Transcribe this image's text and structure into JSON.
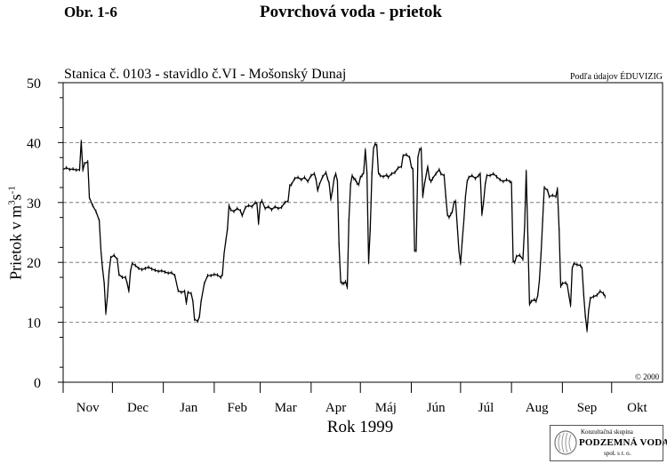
{
  "header": {
    "figure_label": "Obr. 1-6",
    "title": "Povrchová voda - prietok",
    "station": "Stanica č. 0103 - stavidlo č.VI - Mošonský Dunaj",
    "source": "Podľa údajov ÉDUVIZIG",
    "copyright": "© 2000"
  },
  "logo": {
    "line1": "Konzultačná skupina",
    "line2": "PODZEMNÁ VODA",
    "line3": "spol. s r. o."
  },
  "chart_data": {
    "type": "line",
    "title": "Povrchová voda - prietok",
    "subtitle": "Stanica č. 0103 - stavidlo č.VI - Mošonský Dunaj",
    "xlabel": "Rok 1999",
    "ylabel": "Prietok v m³s⁻¹",
    "ylabel_parts": {
      "text": "Prietok v m",
      "sup1": "3",
      "mid": "s",
      "sup2": "-1"
    },
    "ylim": [
      0,
      50
    ],
    "xlim": [
      0,
      365
    ],
    "yticks": [
      0,
      10,
      20,
      30,
      40,
      50
    ],
    "months": [
      "Nov",
      "Dec",
      "Jan",
      "Feb",
      "Mar",
      "Apr",
      "Máj",
      "Jún",
      "Júl",
      "Aug",
      "Sep",
      "Okt"
    ],
    "month_starts": [
      0,
      30,
      61,
      92,
      120,
      151,
      181,
      212,
      242,
      273,
      304,
      334
    ],
    "x_unit": "days since start of November 1998",
    "grid": "horizontal dashed",
    "series": [
      {
        "name": "Prietok",
        "color": "#000000",
        "points": [
          [
            0,
            35.5
          ],
          [
            2,
            35.8
          ],
          [
            4,
            35.5
          ],
          [
            6,
            35.6
          ],
          [
            8,
            35.4
          ],
          [
            10,
            35.5
          ],
          [
            11,
            40.2
          ],
          [
            12,
            35.4
          ],
          [
            13,
            36.5
          ],
          [
            15,
            36.8
          ],
          [
            16,
            30.8
          ],
          [
            18,
            29.5
          ],
          [
            20,
            28.5
          ],
          [
            22,
            27.0
          ],
          [
            23,
            22.0
          ],
          [
            24,
            19.0
          ],
          [
            25,
            16.5
          ],
          [
            26,
            11.5
          ],
          [
            27,
            14.5
          ],
          [
            28,
            18.5
          ],
          [
            29,
            20.8
          ],
          [
            31,
            21.2
          ],
          [
            33,
            20.5
          ],
          [
            34,
            18.0
          ],
          [
            36,
            17.5
          ],
          [
            38,
            17.5
          ],
          [
            39,
            16.5
          ],
          [
            40,
            15.2
          ],
          [
            41,
            18.5
          ],
          [
            42,
            19.8
          ],
          [
            44,
            19.5
          ],
          [
            46,
            19.0
          ],
          [
            48,
            18.8
          ],
          [
            50,
            19.0
          ],
          [
            52,
            19.2
          ],
          [
            54,
            18.9
          ],
          [
            56,
            18.7
          ],
          [
            58,
            18.5
          ],
          [
            60,
            18.6
          ],
          [
            62,
            18.4
          ],
          [
            64,
            18.2
          ],
          [
            66,
            18.3
          ],
          [
            68,
            17.8
          ],
          [
            70,
            15.3
          ],
          [
            72,
            15.0
          ],
          [
            74,
            15.2
          ],
          [
            75,
            13.2
          ],
          [
            76,
            15.0
          ],
          [
            78,
            14.8
          ],
          [
            79,
            13.5
          ],
          [
            80,
            10.5
          ],
          [
            82,
            10.2
          ],
          [
            83,
            11.0
          ],
          [
            84,
            13.5
          ],
          [
            86,
            16.5
          ],
          [
            88,
            17.8
          ],
          [
            90,
            17.8
          ],
          [
            92,
            18.0
          ],
          [
            94,
            17.9
          ],
          [
            96,
            17.5
          ],
          [
            97,
            18.0
          ],
          [
            98,
            21.5
          ],
          [
            99,
            23.5
          ],
          [
            100,
            25.5
          ],
          [
            101,
            29.5
          ],
          [
            102,
            28.8
          ],
          [
            104,
            28.5
          ],
          [
            106,
            29.0
          ],
          [
            108,
            28.6
          ],
          [
            109,
            27.8
          ],
          [
            111,
            29.2
          ],
          [
            113,
            29.5
          ],
          [
            115,
            29.3
          ],
          [
            117,
            30.0
          ],
          [
            118,
            29.8
          ],
          [
            119,
            26.5
          ],
          [
            120,
            29.8
          ],
          [
            121,
            30.3
          ],
          [
            123,
            29.0
          ],
          [
            125,
            29.3
          ],
          [
            127,
            28.8
          ],
          [
            129,
            29.3
          ],
          [
            131,
            29.0
          ],
          [
            133,
            29.2
          ],
          [
            135,
            30.0
          ],
          [
            137,
            30.3
          ],
          [
            138,
            32.8
          ],
          [
            139,
            33.0
          ],
          [
            141,
            34.0
          ],
          [
            143,
            34.2
          ],
          [
            145,
            33.8
          ],
          [
            147,
            34.2
          ],
          [
            149,
            33.5
          ],
          [
            151,
            34.5
          ],
          [
            153,
            34.8
          ],
          [
            154,
            33.8
          ],
          [
            155,
            32.0
          ],
          [
            156,
            33.0
          ],
          [
            158,
            34.3
          ],
          [
            160,
            35.0
          ],
          [
            161,
            34.0
          ],
          [
            162,
            33.2
          ],
          [
            163,
            30.5
          ],
          [
            164,
            32.0
          ],
          [
            165,
            34.0
          ],
          [
            166,
            34.8
          ],
          [
            167,
            33.6
          ],
          [
            168,
            23.0
          ],
          [
            169,
            16.8
          ],
          [
            170,
            16.5
          ],
          [
            171,
            16.5
          ],
          [
            172,
            16.8
          ],
          [
            173,
            15.8
          ],
          [
            174,
            27.0
          ],
          [
            175,
            33.0
          ],
          [
            176,
            34.5
          ],
          [
            177,
            34.0
          ],
          [
            178,
            33.8
          ],
          [
            179,
            33.2
          ],
          [
            180,
            33.0
          ],
          [
            181,
            34.2
          ],
          [
            182,
            34.5
          ],
          [
            183,
            35.0
          ],
          [
            184,
            38.8
          ],
          [
            185,
            35.0
          ],
          [
            186,
            20.0
          ],
          [
            187,
            25.5
          ],
          [
            188,
            34.8
          ],
          [
            189,
            39.0
          ],
          [
            190,
            39.8
          ],
          [
            191,
            39.5
          ],
          [
            192,
            35.0
          ],
          [
            193,
            34.5
          ],
          [
            195,
            34.3
          ],
          [
            197,
            34.6
          ],
          [
            198,
            34.2
          ],
          [
            200,
            34.8
          ],
          [
            202,
            35.0
          ],
          [
            204,
            35.8
          ],
          [
            206,
            36.0
          ],
          [
            207,
            37.8
          ],
          [
            209,
            38.0
          ],
          [
            211,
            37.5
          ],
          [
            212,
            36.0
          ],
          [
            213,
            35.5
          ],
          [
            214,
            22.0
          ],
          [
            215,
            22.0
          ],
          [
            216,
            37.5
          ],
          [
            217,
            38.8
          ],
          [
            218,
            39.0
          ],
          [
            219,
            31.0
          ],
          [
            220,
            33.0
          ],
          [
            221,
            34.5
          ],
          [
            222,
            36.0
          ],
          [
            223,
            34.0
          ],
          [
            224,
            33.5
          ],
          [
            225,
            34.0
          ],
          [
            227,
            34.8
          ],
          [
            229,
            35.5
          ],
          [
            230,
            34.8
          ],
          [
            232,
            34.5
          ],
          [
            233,
            31.0
          ],
          [
            234,
            28.0
          ],
          [
            235,
            27.5
          ],
          [
            236,
            28.0
          ],
          [
            237,
            28.5
          ],
          [
            238,
            30.0
          ],
          [
            239,
            30.2
          ],
          [
            240,
            26.0
          ],
          [
            241,
            22.0
          ],
          [
            242,
            19.8
          ],
          [
            243,
            23.5
          ],
          [
            244,
            27.0
          ],
          [
            245,
            31.0
          ],
          [
            246,
            33.5
          ],
          [
            247,
            34.2
          ],
          [
            249,
            34.5
          ],
          [
            251,
            34.0
          ],
          [
            253,
            34.5
          ],
          [
            254,
            34.8
          ],
          [
            255,
            28.0
          ],
          [
            256,
            30.0
          ],
          [
            257,
            33.0
          ],
          [
            258,
            34.5
          ],
          [
            260,
            34.5
          ],
          [
            262,
            34.8
          ],
          [
            264,
            34.3
          ],
          [
            266,
            33.8
          ],
          [
            268,
            33.5
          ],
          [
            270,
            33.8
          ],
          [
            272,
            33.5
          ],
          [
            273,
            33.3
          ],
          [
            274,
            20.3
          ],
          [
            275,
            20.0
          ],
          [
            276,
            21.0
          ],
          [
            278,
            21.2
          ],
          [
            280,
            20.5
          ],
          [
            281,
            26.0
          ],
          [
            282,
            35.2
          ],
          [
            283,
            24.0
          ],
          [
            284,
            13.0
          ],
          [
            285,
            13.5
          ],
          [
            287,
            13.8
          ],
          [
            288,
            13.5
          ],
          [
            289,
            14.5
          ],
          [
            290,
            17.0
          ],
          [
            291,
            21.5
          ],
          [
            292,
            27.0
          ],
          [
            293,
            32.5
          ],
          [
            295,
            32.0
          ],
          [
            296,
            31.0
          ],
          [
            298,
            31.2
          ],
          [
            300,
            31.0
          ],
          [
            301,
            32.3
          ],
          [
            302,
            25.5
          ],
          [
            303,
            16.0
          ],
          [
            304,
            16.5
          ],
          [
            306,
            16.6
          ],
          [
            307,
            16.2
          ],
          [
            308,
            14.5
          ],
          [
            309,
            12.8
          ],
          [
            310,
            19.0
          ],
          [
            311,
            19.8
          ],
          [
            313,
            19.6
          ],
          [
            315,
            19.5
          ],
          [
            316,
            19.0
          ],
          [
            317,
            14.5
          ],
          [
            318,
            11.0
          ],
          [
            319,
            8.6
          ],
          [
            320,
            12.0
          ],
          [
            321,
            14.0
          ],
          [
            323,
            14.3
          ],
          [
            325,
            14.5
          ],
          [
            327,
            15.2
          ],
          [
            329,
            14.8
          ],
          [
            330,
            14.3
          ]
        ]
      }
    ]
  }
}
